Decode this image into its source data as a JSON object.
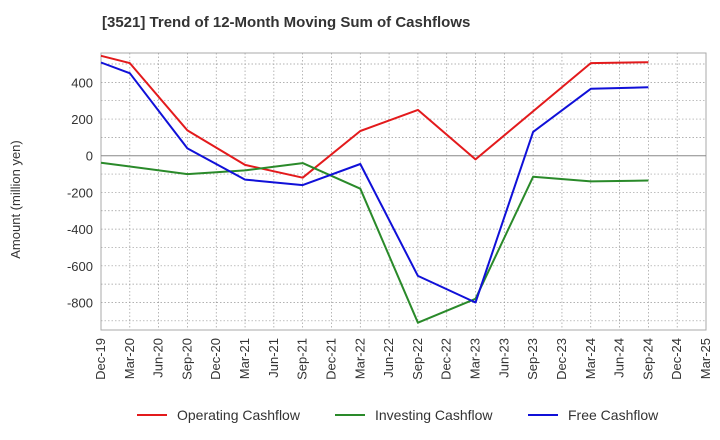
{
  "title": "[3521]  Trend of 12-Month Moving Sum of Cashflows",
  "chart_data": {
    "type": "line",
    "title": "[3521]  Trend of 12-Month Moving Sum of Cashflows",
    "ylabel": "Amount (million yen)",
    "xlabel": "",
    "ylim": [
      -950,
      560
    ],
    "yticks": [
      400,
      200,
      0,
      -200,
      -400,
      -600,
      -800
    ],
    "grid": true,
    "legend_position": "bottom",
    "categories": [
      "Dec-19",
      "Mar-20",
      "Jun-20",
      "Sep-20",
      "Dec-20",
      "Mar-21",
      "Jun-21",
      "Sep-21",
      "Dec-21",
      "Mar-22",
      "Jun-22",
      "Sep-22",
      "Dec-22",
      "Mar-23",
      "Jun-23",
      "Sep-23",
      "Dec-23",
      "Mar-24",
      "Jun-24",
      "Sep-24",
      "Dec-24",
      "Mar-25"
    ],
    "series": [
      {
        "name": "Operating Cashflow",
        "color": "#e31a1c",
        "values": [
          545,
          505,
          null,
          138,
          null,
          -50,
          null,
          -120,
          null,
          135,
          null,
          250,
          null,
          -20,
          null,
          null,
          null,
          505,
          null,
          510,
          null,
          null
        ]
      },
      {
        "name": "Investing Cashflow",
        "color": "#2a8a2a",
        "values": [
          -38,
          null,
          null,
          -100,
          null,
          -80,
          null,
          -40,
          null,
          -180,
          null,
          -910,
          null,
          -780,
          null,
          -115,
          null,
          -140,
          null,
          -135,
          null,
          null
        ]
      },
      {
        "name": "Free Cashflow",
        "color": "#1010d8",
        "values": [
          508,
          450,
          null,
          40,
          null,
          -130,
          null,
          -160,
          null,
          -45,
          null,
          -655,
          null,
          -800,
          null,
          130,
          null,
          365,
          null,
          373,
          null,
          null
        ]
      }
    ]
  }
}
